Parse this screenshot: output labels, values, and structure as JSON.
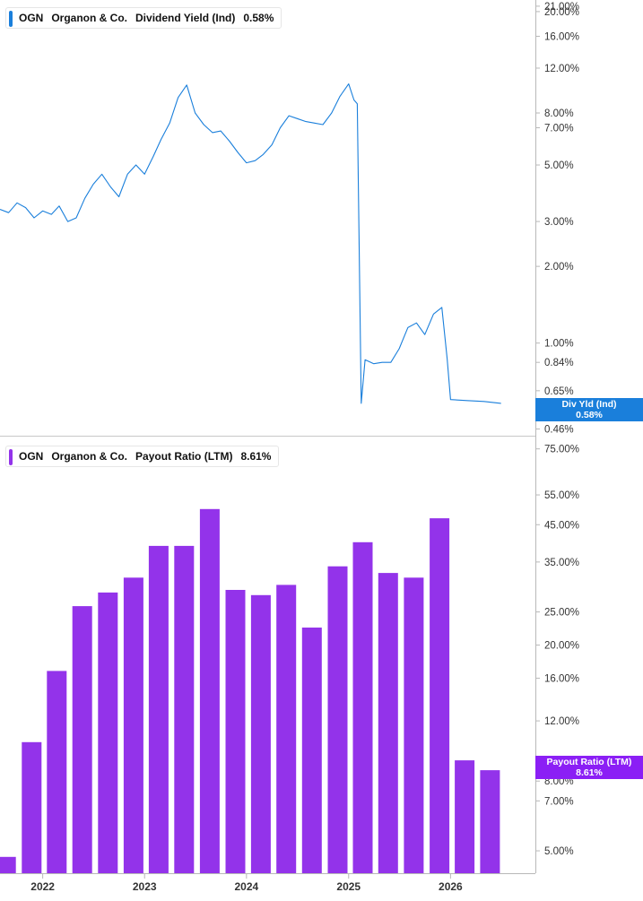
{
  "colors": {
    "yield": "#1a7fdb",
    "payout": "#9333ea",
    "axis": "#b8b8b8",
    "tick_text": "#333333"
  },
  "top_legend": {
    "ticker": "OGN",
    "company": "Organon & Co.",
    "metric": "Dividend Yield (Ind)",
    "value": "0.58%"
  },
  "bottom_legend": {
    "ticker": "OGN",
    "company": "Organon & Co.",
    "metric": "Payout Ratio (LTM)",
    "value": "8.61%"
  },
  "top_tag": {
    "line1": "Div Yld (Ind)",
    "line2": "0.58%"
  },
  "bottom_tag": {
    "line1": "Payout Ratio (LTM)",
    "line2": "8.61%"
  },
  "chart_data": [
    {
      "type": "line",
      "title": "OGN Organon & Co. Dividend Yield (Ind) 0.58%",
      "scale": "log",
      "ylim": [
        0.44,
        21.5
      ],
      "yticks": [
        {
          "v": 21.0,
          "label": "21.00%"
        },
        {
          "v": 20.0,
          "label": "20.00%"
        },
        {
          "v": 16.0,
          "label": "16.00%"
        },
        {
          "v": 12.0,
          "label": "12.00%"
        },
        {
          "v": 8.0,
          "label": "8.00%"
        },
        {
          "v": 7.0,
          "label": "7.00%"
        },
        {
          "v": 5.0,
          "label": "5.00%"
        },
        {
          "v": 3.0,
          "label": "3.00%"
        },
        {
          "v": 2.0,
          "label": "2.00%"
        },
        {
          "v": 1.0,
          "label": "1.00%"
        },
        {
          "v": 0.84,
          "label": "0.84%"
        },
        {
          "v": 0.65,
          "label": "0.65%"
        },
        {
          "v": 0.46,
          "label": "0.46%"
        }
      ],
      "xlim": [
        "2021-08-01",
        "2026-11-01"
      ],
      "series": [
        {
          "name": "Div Yld (Ind)",
          "points": [
            [
              "2021-08-01",
              3.35
            ],
            [
              "2021-09-01",
              3.25
            ],
            [
              "2021-10-01",
              3.55
            ],
            [
              "2021-11-01",
              3.4
            ],
            [
              "2021-12-01",
              3.1
            ],
            [
              "2022-01-01",
              3.3
            ],
            [
              "2022-02-01",
              3.2
            ],
            [
              "2022-03-01",
              3.45
            ],
            [
              "2022-04-01",
              3.0
            ],
            [
              "2022-05-01",
              3.1
            ],
            [
              "2022-06-01",
              3.7
            ],
            [
              "2022-07-01",
              4.2
            ],
            [
              "2022-08-01",
              4.6
            ],
            [
              "2022-09-01",
              4.1
            ],
            [
              "2022-10-01",
              3.75
            ],
            [
              "2022-11-01",
              4.6
            ],
            [
              "2022-12-01",
              5.0
            ],
            [
              "2023-01-01",
              4.6
            ],
            [
              "2023-02-01",
              5.4
            ],
            [
              "2023-03-01",
              6.3
            ],
            [
              "2023-04-01",
              7.3
            ],
            [
              "2023-05-01",
              9.2
            ],
            [
              "2023-06-01",
              10.3
            ],
            [
              "2023-07-01",
              8.0
            ],
            [
              "2023-08-01",
              7.2
            ],
            [
              "2023-09-01",
              6.7
            ],
            [
              "2023-10-01",
              6.8
            ],
            [
              "2023-11-01",
              6.2
            ],
            [
              "2023-12-01",
              5.6
            ],
            [
              "2024-01-01",
              5.1
            ],
            [
              "2024-02-01",
              5.2
            ],
            [
              "2024-03-01",
              5.5
            ],
            [
              "2024-04-01",
              6.0
            ],
            [
              "2024-05-01",
              7.0
            ],
            [
              "2024-06-01",
              7.8
            ],
            [
              "2024-07-01",
              7.6
            ],
            [
              "2024-08-01",
              7.4
            ],
            [
              "2024-09-01",
              7.3
            ],
            [
              "2024-10-01",
              7.2
            ],
            [
              "2024-11-01",
              8.0
            ],
            [
              "2024-12-01",
              9.3
            ],
            [
              "2025-01-01",
              10.4
            ],
            [
              "2025-01-20",
              9.0
            ],
            [
              "2025-02-01",
              8.7
            ],
            [
              "2025-02-15",
              0.58
            ],
            [
              "2025-03-01",
              0.86
            ],
            [
              "2025-04-01",
              0.83
            ],
            [
              "2025-05-01",
              0.84
            ],
            [
              "2025-06-01",
              0.84
            ],
            [
              "2025-07-01",
              0.95
            ],
            [
              "2025-08-01",
              1.15
            ],
            [
              "2025-09-01",
              1.2
            ],
            [
              "2025-10-01",
              1.08
            ],
            [
              "2025-11-01",
              1.3
            ],
            [
              "2025-12-01",
              1.38
            ],
            [
              "2025-12-20",
              0.87
            ],
            [
              "2026-01-01",
              0.6
            ],
            [
              "2026-03-01",
              0.595
            ],
            [
              "2026-05-01",
              0.59
            ],
            [
              "2026-07-01",
              0.58
            ]
          ]
        }
      ]
    },
    {
      "type": "bar",
      "title": "OGN Organon & Co. Payout Ratio (LTM) 8.61%",
      "scale": "log",
      "ylim": [
        4.3,
        80.0
      ],
      "yticks": [
        {
          "v": 75.0,
          "label": "75.00%"
        },
        {
          "v": 55.0,
          "label": "55.00%"
        },
        {
          "v": 45.0,
          "label": "45.00%"
        },
        {
          "v": 35.0,
          "label": "35.00%"
        },
        {
          "v": 25.0,
          "label": "25.00%"
        },
        {
          "v": 20.0,
          "label": "20.00%"
        },
        {
          "v": 16.0,
          "label": "16.00%"
        },
        {
          "v": 12.0,
          "label": "12.00%"
        },
        {
          "v": 8.0,
          "label": "8.00%"
        },
        {
          "v": 7.0,
          "label": "7.00%"
        },
        {
          "v": 5.0,
          "label": "5.00%"
        }
      ],
      "xlim": [
        "2021-08-01",
        "2026-11-01"
      ],
      "xticks": [
        {
          "date": "2022-01-01",
          "label": "2022"
        },
        {
          "date": "2023-01-01",
          "label": "2023"
        },
        {
          "date": "2024-01-01",
          "label": "2024"
        },
        {
          "date": "2025-01-01",
          "label": "2025"
        },
        {
          "date": "2026-01-01",
          "label": "2026"
        }
      ],
      "series": [
        {
          "name": "Payout Ratio (LTM)",
          "points": [
            [
              "2021-09-30",
              4.8
            ],
            [
              "2021-12-31",
              10.4
            ],
            [
              "2022-03-31",
              16.8
            ],
            [
              "2022-06-30",
              26.0
            ],
            [
              "2022-09-30",
              28.5
            ],
            [
              "2022-12-31",
              31.5
            ],
            [
              "2023-03-31",
              39.0
            ],
            [
              "2023-06-30",
              39.0
            ],
            [
              "2023-09-30",
              50.0
            ],
            [
              "2023-12-31",
              29.0
            ],
            [
              "2024-03-31",
              28.0
            ],
            [
              "2024-06-30",
              30.0
            ],
            [
              "2024-09-30",
              22.5
            ],
            [
              "2024-12-31",
              34.0
            ],
            [
              "2025-03-31",
              40.0
            ],
            [
              "2025-06-30",
              32.5
            ],
            [
              "2025-09-30",
              31.5
            ],
            [
              "2025-12-31",
              47.0
            ],
            [
              "2026-03-31",
              9.2
            ],
            [
              "2026-06-30",
              8.61
            ]
          ]
        }
      ]
    }
  ]
}
